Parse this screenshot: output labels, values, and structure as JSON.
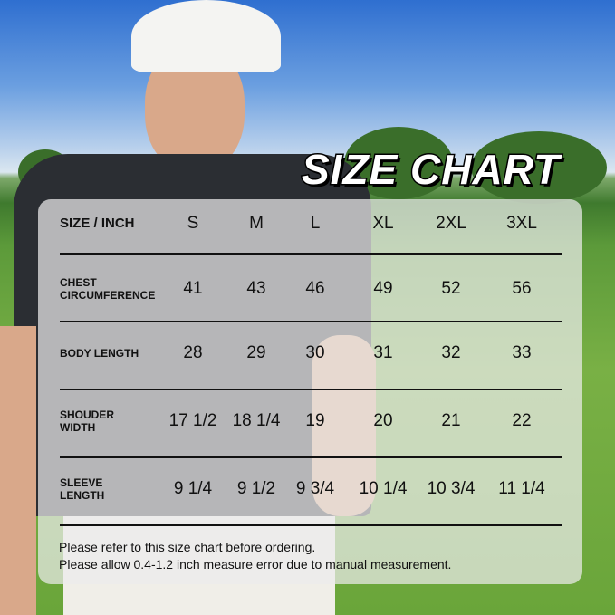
{
  "title": "SIZE CHART",
  "table": {
    "corner": "SIZE / INCH",
    "sizes": [
      "S",
      "M",
      "L",
      "XL",
      "2XL",
      "3XL"
    ],
    "rows": [
      {
        "label": [
          "CHEST",
          "CIRCUMFERENCE"
        ],
        "values": [
          "41",
          "43",
          "46",
          "49",
          "52",
          "56"
        ]
      },
      {
        "label": [
          "BODY LENGTH"
        ],
        "values": [
          "28",
          "29",
          "30",
          "31",
          "32",
          "33"
        ]
      },
      {
        "label": [
          "SHOUDER",
          "WIDTH"
        ],
        "values": [
          "17 1/2",
          "18 1/4",
          "19",
          "20",
          "21",
          "22"
        ]
      },
      {
        "label": [
          "SLEEVE",
          "LENGTH"
        ],
        "values": [
          "9 1/4",
          "9 1/2",
          "9 3/4",
          "10 1/4",
          "10 3/4",
          "11 1/4"
        ]
      }
    ]
  },
  "notes": [
    "Please refer to this size chart before ordering.",
    "Please allow 0.4-1.2 inch measure error due to manual measurement."
  ]
}
